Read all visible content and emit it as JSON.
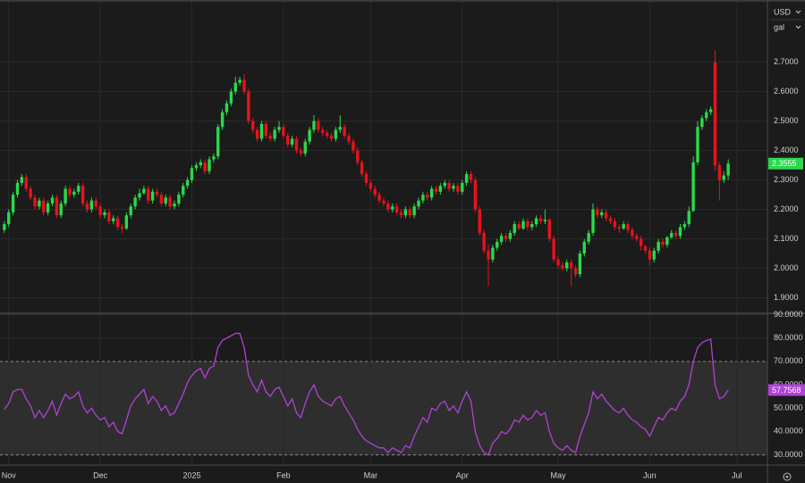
{
  "controls": {
    "currency": "USD",
    "unit": "gal"
  },
  "chart_data": [
    {
      "type": "candlestick",
      "up_color": "#2bd94a",
      "down_color": "#e8121c",
      "grid": true,
      "xlim": [
        -1,
        175
      ],
      "ylim": [
        1.85,
        2.905
      ],
      "yticks": [
        {
          "value": 1.9,
          "label": "1.9000"
        },
        {
          "value": 2.0,
          "label": "2.0000"
        },
        {
          "value": 2.1,
          "label": "2.1000"
        },
        {
          "value": 2.2,
          "label": "2.2000"
        },
        {
          "value": 2.3,
          "label": "2.3000"
        },
        {
          "value": 2.4,
          "label": "2.4000"
        },
        {
          "value": 2.5,
          "label": "2.5000"
        },
        {
          "value": 2.6,
          "label": "2.6000"
        },
        {
          "value": 2.7,
          "label": "2.7000"
        }
      ],
      "candles": [
        [
          2.13,
          2.16,
          2.12,
          2.15
        ],
        [
          2.15,
          2.2,
          2.14,
          2.19
        ],
        [
          2.19,
          2.26,
          2.18,
          2.25
        ],
        [
          2.25,
          2.3,
          2.24,
          2.29
        ],
        [
          2.29,
          2.32,
          2.28,
          2.31
        ],
        [
          2.31,
          2.32,
          2.26,
          2.27
        ],
        [
          2.27,
          2.28,
          2.23,
          2.24
        ],
        [
          2.24,
          2.25,
          2.2,
          2.21
        ],
        [
          2.21,
          2.24,
          2.2,
          2.23
        ],
        [
          2.23,
          2.24,
          2.18,
          2.19
        ],
        [
          2.19,
          2.23,
          2.18,
          2.22
        ],
        [
          2.22,
          2.25,
          2.21,
          2.24
        ],
        [
          2.24,
          2.25,
          2.17,
          2.18
        ],
        [
          2.18,
          2.23,
          2.17,
          2.22
        ],
        [
          2.22,
          2.28,
          2.21,
          2.27
        ],
        [
          2.27,
          2.28,
          2.24,
          2.25
        ],
        [
          2.25,
          2.27,
          2.24,
          2.26
        ],
        [
          2.26,
          2.29,
          2.25,
          2.28
        ],
        [
          2.28,
          2.29,
          2.21,
          2.22
        ],
        [
          2.22,
          2.23,
          2.19,
          2.2
        ],
        [
          2.2,
          2.24,
          2.19,
          2.23
        ],
        [
          2.23,
          2.24,
          2.2,
          2.21
        ],
        [
          2.21,
          2.22,
          2.17,
          2.18
        ],
        [
          2.18,
          2.2,
          2.17,
          2.19
        ],
        [
          2.19,
          2.2,
          2.15,
          2.16
        ],
        [
          2.16,
          2.18,
          2.15,
          2.17
        ],
        [
          2.17,
          2.18,
          2.13,
          2.14
        ],
        [
          2.14,
          2.15,
          2.12,
          2.135
        ],
        [
          2.135,
          2.19,
          2.13,
          2.18
        ],
        [
          2.18,
          2.22,
          2.17,
          2.21
        ],
        [
          2.21,
          2.25,
          2.2,
          2.24
        ],
        [
          2.24,
          2.27,
          2.23,
          2.255
        ],
        [
          2.255,
          2.28,
          2.25,
          2.27
        ],
        [
          2.27,
          2.28,
          2.22,
          2.23
        ],
        [
          2.23,
          2.27,
          2.22,
          2.26
        ],
        [
          2.26,
          2.27,
          2.24,
          2.25
        ],
        [
          2.25,
          2.26,
          2.21,
          2.22
        ],
        [
          2.22,
          2.25,
          2.21,
          2.24
        ],
        [
          2.24,
          2.25,
          2.2,
          2.21
        ],
        [
          2.21,
          2.23,
          2.2,
          2.22
        ],
        [
          2.22,
          2.26,
          2.21,
          2.25
        ],
        [
          2.25,
          2.29,
          2.24,
          2.28
        ],
        [
          2.28,
          2.31,
          2.27,
          2.3
        ],
        [
          2.3,
          2.35,
          2.29,
          2.34
        ],
        [
          2.34,
          2.36,
          2.33,
          2.35
        ],
        [
          2.35,
          2.37,
          2.34,
          2.36
        ],
        [
          2.36,
          2.37,
          2.32,
          2.33
        ],
        [
          2.33,
          2.38,
          2.32,
          2.37
        ],
        [
          2.37,
          2.39,
          2.36,
          2.38
        ],
        [
          2.38,
          2.49,
          2.37,
          2.48
        ],
        [
          2.48,
          2.54,
          2.47,
          2.53
        ],
        [
          2.53,
          2.57,
          2.52,
          2.56
        ],
        [
          2.56,
          2.61,
          2.55,
          2.6
        ],
        [
          2.6,
          2.65,
          2.59,
          2.63
        ],
        [
          2.63,
          2.65,
          2.62,
          2.64
        ],
        [
          2.64,
          2.66,
          2.59,
          2.6
        ],
        [
          2.6,
          2.61,
          2.49,
          2.5
        ],
        [
          2.5,
          2.51,
          2.46,
          2.47
        ],
        [
          2.47,
          2.48,
          2.43,
          2.44
        ],
        [
          2.44,
          2.5,
          2.43,
          2.49
        ],
        [
          2.49,
          2.5,
          2.44,
          2.45
        ],
        [
          2.45,
          2.46,
          2.43,
          2.44
        ],
        [
          2.44,
          2.48,
          2.43,
          2.47
        ],
        [
          2.47,
          2.5,
          2.46,
          2.48
        ],
        [
          2.48,
          2.49,
          2.44,
          2.45
        ],
        [
          2.45,
          2.46,
          2.41,
          2.42
        ],
        [
          2.42,
          2.45,
          2.41,
          2.44
        ],
        [
          2.44,
          2.45,
          2.39,
          2.4
        ],
        [
          2.4,
          2.41,
          2.38,
          2.39
        ],
        [
          2.39,
          2.44,
          2.38,
          2.43
        ],
        [
          2.43,
          2.48,
          2.42,
          2.47
        ],
        [
          2.47,
          2.52,
          2.46,
          2.5
        ],
        [
          2.5,
          2.51,
          2.46,
          2.47
        ],
        [
          2.47,
          2.48,
          2.45,
          2.46
        ],
        [
          2.46,
          2.47,
          2.44,
          2.45
        ],
        [
          2.45,
          2.46,
          2.43,
          2.44
        ],
        [
          2.44,
          2.48,
          2.43,
          2.47
        ],
        [
          2.47,
          2.52,
          2.46,
          2.48
        ],
        [
          2.48,
          2.49,
          2.44,
          2.45
        ],
        [
          2.45,
          2.46,
          2.42,
          2.43
        ],
        [
          2.43,
          2.44,
          2.39,
          2.4
        ],
        [
          2.4,
          2.41,
          2.35,
          2.36
        ],
        [
          2.36,
          2.37,
          2.31,
          2.32
        ],
        [
          2.32,
          2.33,
          2.28,
          2.29
        ],
        [
          2.29,
          2.3,
          2.26,
          2.27
        ],
        [
          2.27,
          2.28,
          2.24,
          2.25
        ],
        [
          2.25,
          2.26,
          2.22,
          2.23
        ],
        [
          2.23,
          2.24,
          2.21,
          2.22
        ],
        [
          2.22,
          2.23,
          2.19,
          2.2
        ],
        [
          2.2,
          2.22,
          2.19,
          2.21
        ],
        [
          2.21,
          2.22,
          2.18,
          2.19
        ],
        [
          2.19,
          2.2,
          2.17,
          2.18
        ],
        [
          2.18,
          2.21,
          2.17,
          2.2
        ],
        [
          2.2,
          2.21,
          2.17,
          2.18
        ],
        [
          2.18,
          2.22,
          2.17,
          2.21
        ],
        [
          2.21,
          2.24,
          2.2,
          2.23
        ],
        [
          2.23,
          2.26,
          2.22,
          2.25
        ],
        [
          2.25,
          2.26,
          2.23,
          2.24
        ],
        [
          2.24,
          2.28,
          2.23,
          2.27
        ],
        [
          2.27,
          2.28,
          2.25,
          2.26
        ],
        [
          2.26,
          2.29,
          2.25,
          2.28
        ],
        [
          2.28,
          2.3,
          2.27,
          2.29
        ],
        [
          2.29,
          2.3,
          2.26,
          2.27
        ],
        [
          2.27,
          2.29,
          2.26,
          2.28
        ],
        [
          2.28,
          2.29,
          2.25,
          2.26
        ],
        [
          2.26,
          2.3,
          2.25,
          2.29
        ],
        [
          2.29,
          2.33,
          2.28,
          2.32
        ],
        [
          2.32,
          2.33,
          2.29,
          2.3
        ],
        [
          2.3,
          2.31,
          2.19,
          2.2
        ],
        [
          2.2,
          2.21,
          2.11,
          2.12
        ],
        [
          2.12,
          2.13,
          2.05,
          2.06
        ],
        [
          2.06,
          2.08,
          1.94,
          2.03
        ],
        [
          2.03,
          2.08,
          2.02,
          2.07
        ],
        [
          2.07,
          2.1,
          2.06,
          2.09
        ],
        [
          2.09,
          2.12,
          2.08,
          2.11
        ],
        [
          2.11,
          2.12,
          2.09,
          2.1
        ],
        [
          2.1,
          2.13,
          2.09,
          2.12
        ],
        [
          2.12,
          2.16,
          2.11,
          2.15
        ],
        [
          2.15,
          2.16,
          2.13,
          2.135
        ],
        [
          2.135,
          2.17,
          2.13,
          2.16
        ],
        [
          2.16,
          2.17,
          2.13,
          2.14
        ],
        [
          2.14,
          2.16,
          2.13,
          2.15
        ],
        [
          2.15,
          2.18,
          2.14,
          2.17
        ],
        [
          2.17,
          2.18,
          2.15,
          2.16
        ],
        [
          2.16,
          2.2,
          2.15,
          2.165
        ],
        [
          2.165,
          2.17,
          2.09,
          2.1
        ],
        [
          2.1,
          2.11,
          2.02,
          2.03
        ],
        [
          2.03,
          2.04,
          2.0,
          2.01
        ],
        [
          2.01,
          2.02,
          1.99,
          2.0
        ],
        [
          2.0,
          2.03,
          1.99,
          2.02
        ],
        [
          2.02,
          2.03,
          1.94,
          2.0
        ],
        [
          2.0,
          2.01,
          1.97,
          1.98
        ],
        [
          1.98,
          2.06,
          1.97,
          2.05
        ],
        [
          2.05,
          2.1,
          2.04,
          2.09
        ],
        [
          2.09,
          2.13,
          2.08,
          2.12
        ],
        [
          2.12,
          2.22,
          2.11,
          2.2
        ],
        [
          2.2,
          2.21,
          2.17,
          2.18
        ],
        [
          2.18,
          2.2,
          2.17,
          2.19
        ],
        [
          2.19,
          2.2,
          2.16,
          2.17
        ],
        [
          2.17,
          2.18,
          2.15,
          2.16
        ],
        [
          2.16,
          2.17,
          2.13,
          2.14
        ],
        [
          2.14,
          2.15,
          2.12,
          2.135
        ],
        [
          2.135,
          2.16,
          2.13,
          2.15
        ],
        [
          2.15,
          2.16,
          2.12,
          2.13
        ],
        [
          2.13,
          2.14,
          2.1,
          2.11
        ],
        [
          2.11,
          2.12,
          2.09,
          2.1
        ],
        [
          2.1,
          2.11,
          2.06,
          2.075
        ],
        [
          2.075,
          2.08,
          2.05,
          2.06
        ],
        [
          2.06,
          2.07,
          2.01,
          2.03
        ],
        [
          2.03,
          2.07,
          2.02,
          2.06
        ],
        [
          2.06,
          2.1,
          2.05,
          2.09
        ],
        [
          2.09,
          2.1,
          2.07,
          2.08
        ],
        [
          2.08,
          2.11,
          2.07,
          2.105
        ],
        [
          2.105,
          2.13,
          2.1,
          2.12
        ],
        [
          2.12,
          2.13,
          2.1,
          2.11
        ],
        [
          2.11,
          2.15,
          2.1,
          2.14
        ],
        [
          2.14,
          2.16,
          2.13,
          2.15
        ],
        [
          2.15,
          2.21,
          2.14,
          2.195
        ],
        [
          2.195,
          2.38,
          2.19,
          2.36
        ],
        [
          2.36,
          2.5,
          2.35,
          2.48
        ],
        [
          2.48,
          2.52,
          2.47,
          2.51
        ],
        [
          2.51,
          2.54,
          2.5,
          2.53
        ],
        [
          2.53,
          2.55,
          2.52,
          2.54
        ],
        [
          2.7,
          2.74,
          2.33,
          2.35
        ],
        [
          2.35,
          2.36,
          2.23,
          2.3
        ],
        [
          2.3,
          2.33,
          2.29,
          2.315
        ],
        [
          2.315,
          2.37,
          2.3,
          2.3555
        ]
      ]
    },
    {
      "type": "line",
      "color": "#b042d6",
      "grid": true,
      "xlim": [
        -1,
        175
      ],
      "xticks": [
        {
          "value": 1,
          "label": "Nov"
        },
        {
          "value": 22,
          "label": "Dec"
        },
        {
          "value": 43,
          "label": "2025"
        },
        {
          "value": 64,
          "label": "Feb"
        },
        {
          "value": 84,
          "label": "Mar"
        },
        {
          "value": 105,
          "label": "Apr"
        },
        {
          "value": 127,
          "label": "May"
        },
        {
          "value": 148,
          "label": "Jun"
        },
        {
          "value": 168,
          "label": "Jul"
        }
      ],
      "ylim": [
        26,
        90.2
      ],
      "yticks": [
        {
          "value": 30,
          "label": "30.0000"
        },
        {
          "value": 40,
          "label": "40.0000"
        },
        {
          "value": 50,
          "label": "50.0000"
        },
        {
          "value": 60,
          "label": "60.0000"
        },
        {
          "value": 70,
          "label": "70.0000"
        },
        {
          "value": 80,
          "label": "80.0000"
        },
        {
          "value": 90,
          "label": "90.0000"
        }
      ],
      "bands": [
        30,
        70
      ],
      "values": [
        49.5,
        52,
        57,
        58,
        58,
        54,
        51,
        46,
        49,
        46,
        49,
        53,
        47,
        52,
        56,
        54,
        55,
        57,
        51,
        48,
        50,
        47,
        45,
        46,
        42,
        44,
        40,
        39,
        45,
        51,
        54,
        56,
        58,
        52,
        55,
        53,
        49,
        51,
        47,
        48,
        52,
        56,
        61,
        64,
        66,
        67,
        63,
        67,
        68,
        76,
        79,
        80,
        81,
        82,
        82,
        76,
        64,
        60,
        57,
        62,
        57,
        55,
        58,
        59,
        55,
        51,
        54,
        48,
        46,
        52,
        57,
        60,
        55,
        53,
        52,
        51,
        54,
        55,
        51,
        48,
        45,
        41,
        38,
        36,
        35,
        34,
        33,
        33,
        31,
        33,
        32,
        31,
        34,
        33,
        38,
        42,
        46,
        44,
        50,
        49,
        52,
        53,
        49,
        51,
        48,
        53,
        57,
        53,
        40,
        34,
        31,
        30,
        35,
        37,
        40,
        39,
        41,
        45,
        44,
        47,
        45,
        46,
        49,
        47,
        48,
        40,
        35,
        33,
        32,
        34,
        32,
        31,
        38,
        43,
        48,
        57,
        54,
        56,
        53,
        51,
        49,
        48,
        50,
        47,
        45,
        44,
        42,
        41,
        38,
        42,
        46,
        45,
        48,
        50,
        49,
        53,
        55,
        60,
        70,
        76,
        78,
        79,
        79.5,
        60,
        54,
        55,
        57.7568
      ]
    }
  ]
}
